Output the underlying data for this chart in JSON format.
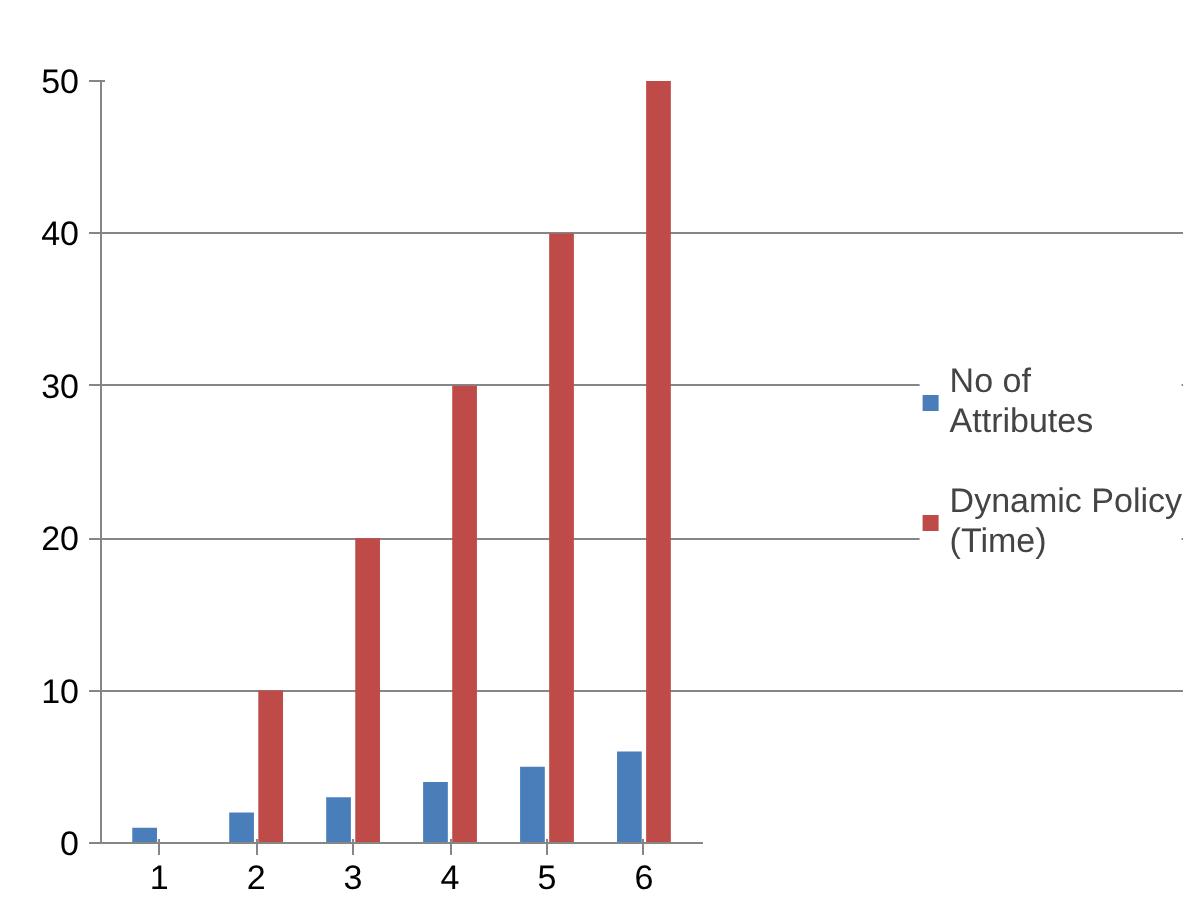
{
  "chart_data": {
    "type": "bar",
    "categories": [
      "1",
      "2",
      "3",
      "4",
      "5",
      "6"
    ],
    "series": [
      {
        "name": "No of Attributes",
        "color": "#4a7ebb",
        "values": [
          1,
          2,
          3,
          4,
          5,
          6
        ]
      },
      {
        "name": "Dynamic Policy (Time)",
        "color": "#be4b48",
        "values": [
          0,
          10,
          20,
          30,
          40,
          50
        ]
      }
    ],
    "ylim": [
      0,
      50
    ],
    "yticks": [
      0,
      10,
      20,
      30,
      40,
      50
    ],
    "grid": "y",
    "legend": "right"
  }
}
